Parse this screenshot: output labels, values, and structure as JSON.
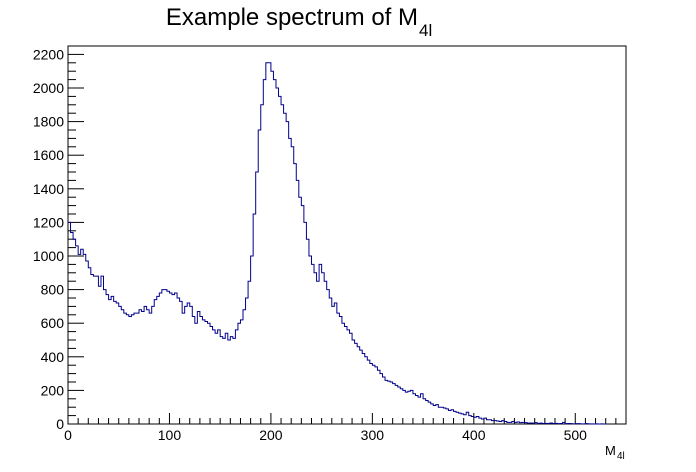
{
  "chart_data": {
    "type": "histogram",
    "title_main": "Example spectrum of M",
    "title_sub": "4l",
    "xlabel_main": "M",
    "xlabel_sub": "4l",
    "ylabel": "",
    "xlim": [
      0,
      550
    ],
    "ylim": [
      0,
      2250
    ],
    "bin_width": 2.5,
    "grid": false,
    "legend": "none",
    "line_color": "#00008b",
    "x_major_ticks": [
      0,
      100,
      200,
      300,
      400,
      500
    ],
    "x_minor_step": 10,
    "y_major_ticks": [
      0,
      200,
      400,
      600,
      800,
      1000,
      1200,
      1400,
      1600,
      1800,
      2000,
      2200
    ],
    "y_minor_step": 50,
    "x_tick_labels": [
      "0",
      "100",
      "200",
      "300",
      "400",
      "500"
    ],
    "y_tick_labels": [
      "0",
      "200",
      "400",
      "600",
      "800",
      "1000",
      "1200",
      "1400",
      "1600",
      "1800",
      "2000",
      "2200"
    ],
    "values": [
      1200,
      1140,
      1100,
      1060,
      1010,
      1040,
      1010,
      970,
      930,
      890,
      880,
      880,
      820,
      880,
      800,
      770,
      740,
      760,
      730,
      720,
      700,
      680,
      660,
      650,
      640,
      650,
      660,
      660,
      680,
      670,
      700,
      680,
      660,
      700,
      740,
      760,
      780,
      800,
      800,
      790,
      780,
      770,
      780,
      750,
      730,
      660,
      700,
      720,
      700,
      640,
      600,
      670,
      640,
      620,
      610,
      600,
      580,
      560,
      540,
      560,
      520,
      510,
      540,
      500,
      520,
      510,
      560,
      600,
      620,
      680,
      750,
      850,
      1000,
      1250,
      1500,
      1750,
      1900,
      2050,
      2150,
      2150,
      2100,
      2050,
      2000,
      1950,
      1900,
      1850,
      1800,
      1700,
      1650,
      1550,
      1450,
      1350,
      1300,
      1200,
      1100,
      1000,
      950,
      900,
      850,
      950,
      900,
      850,
      800,
      750,
      700,
      720,
      660,
      640,
      600,
      580,
      560,
      540,
      500,
      480,
      460,
      440,
      420,
      400,
      380,
      360,
      350,
      340,
      320,
      300,
      280,
      260,
      255,
      250,
      240,
      230,
      220,
      210,
      200,
      190,
      195,
      200,
      180,
      170,
      160,
      180,
      150,
      140,
      130,
      120,
      110,
      115,
      100,
      100,
      95,
      90,
      80,
      85,
      75,
      70,
      65,
      60,
      55,
      70,
      50,
      45,
      40,
      45,
      35,
      30,
      35,
      25,
      25,
      20,
      20,
      18,
      15,
      20,
      15,
      10,
      10,
      15,
      10,
      12,
      8,
      10,
      8,
      5,
      6,
      5,
      8,
      4,
      5,
      3,
      4,
      3,
      6,
      3,
      4,
      2,
      3,
      10,
      2,
      3,
      2,
      1,
      2,
      2,
      1,
      1,
      2,
      1,
      1,
      0,
      1,
      0,
      1,
      0
    ]
  }
}
